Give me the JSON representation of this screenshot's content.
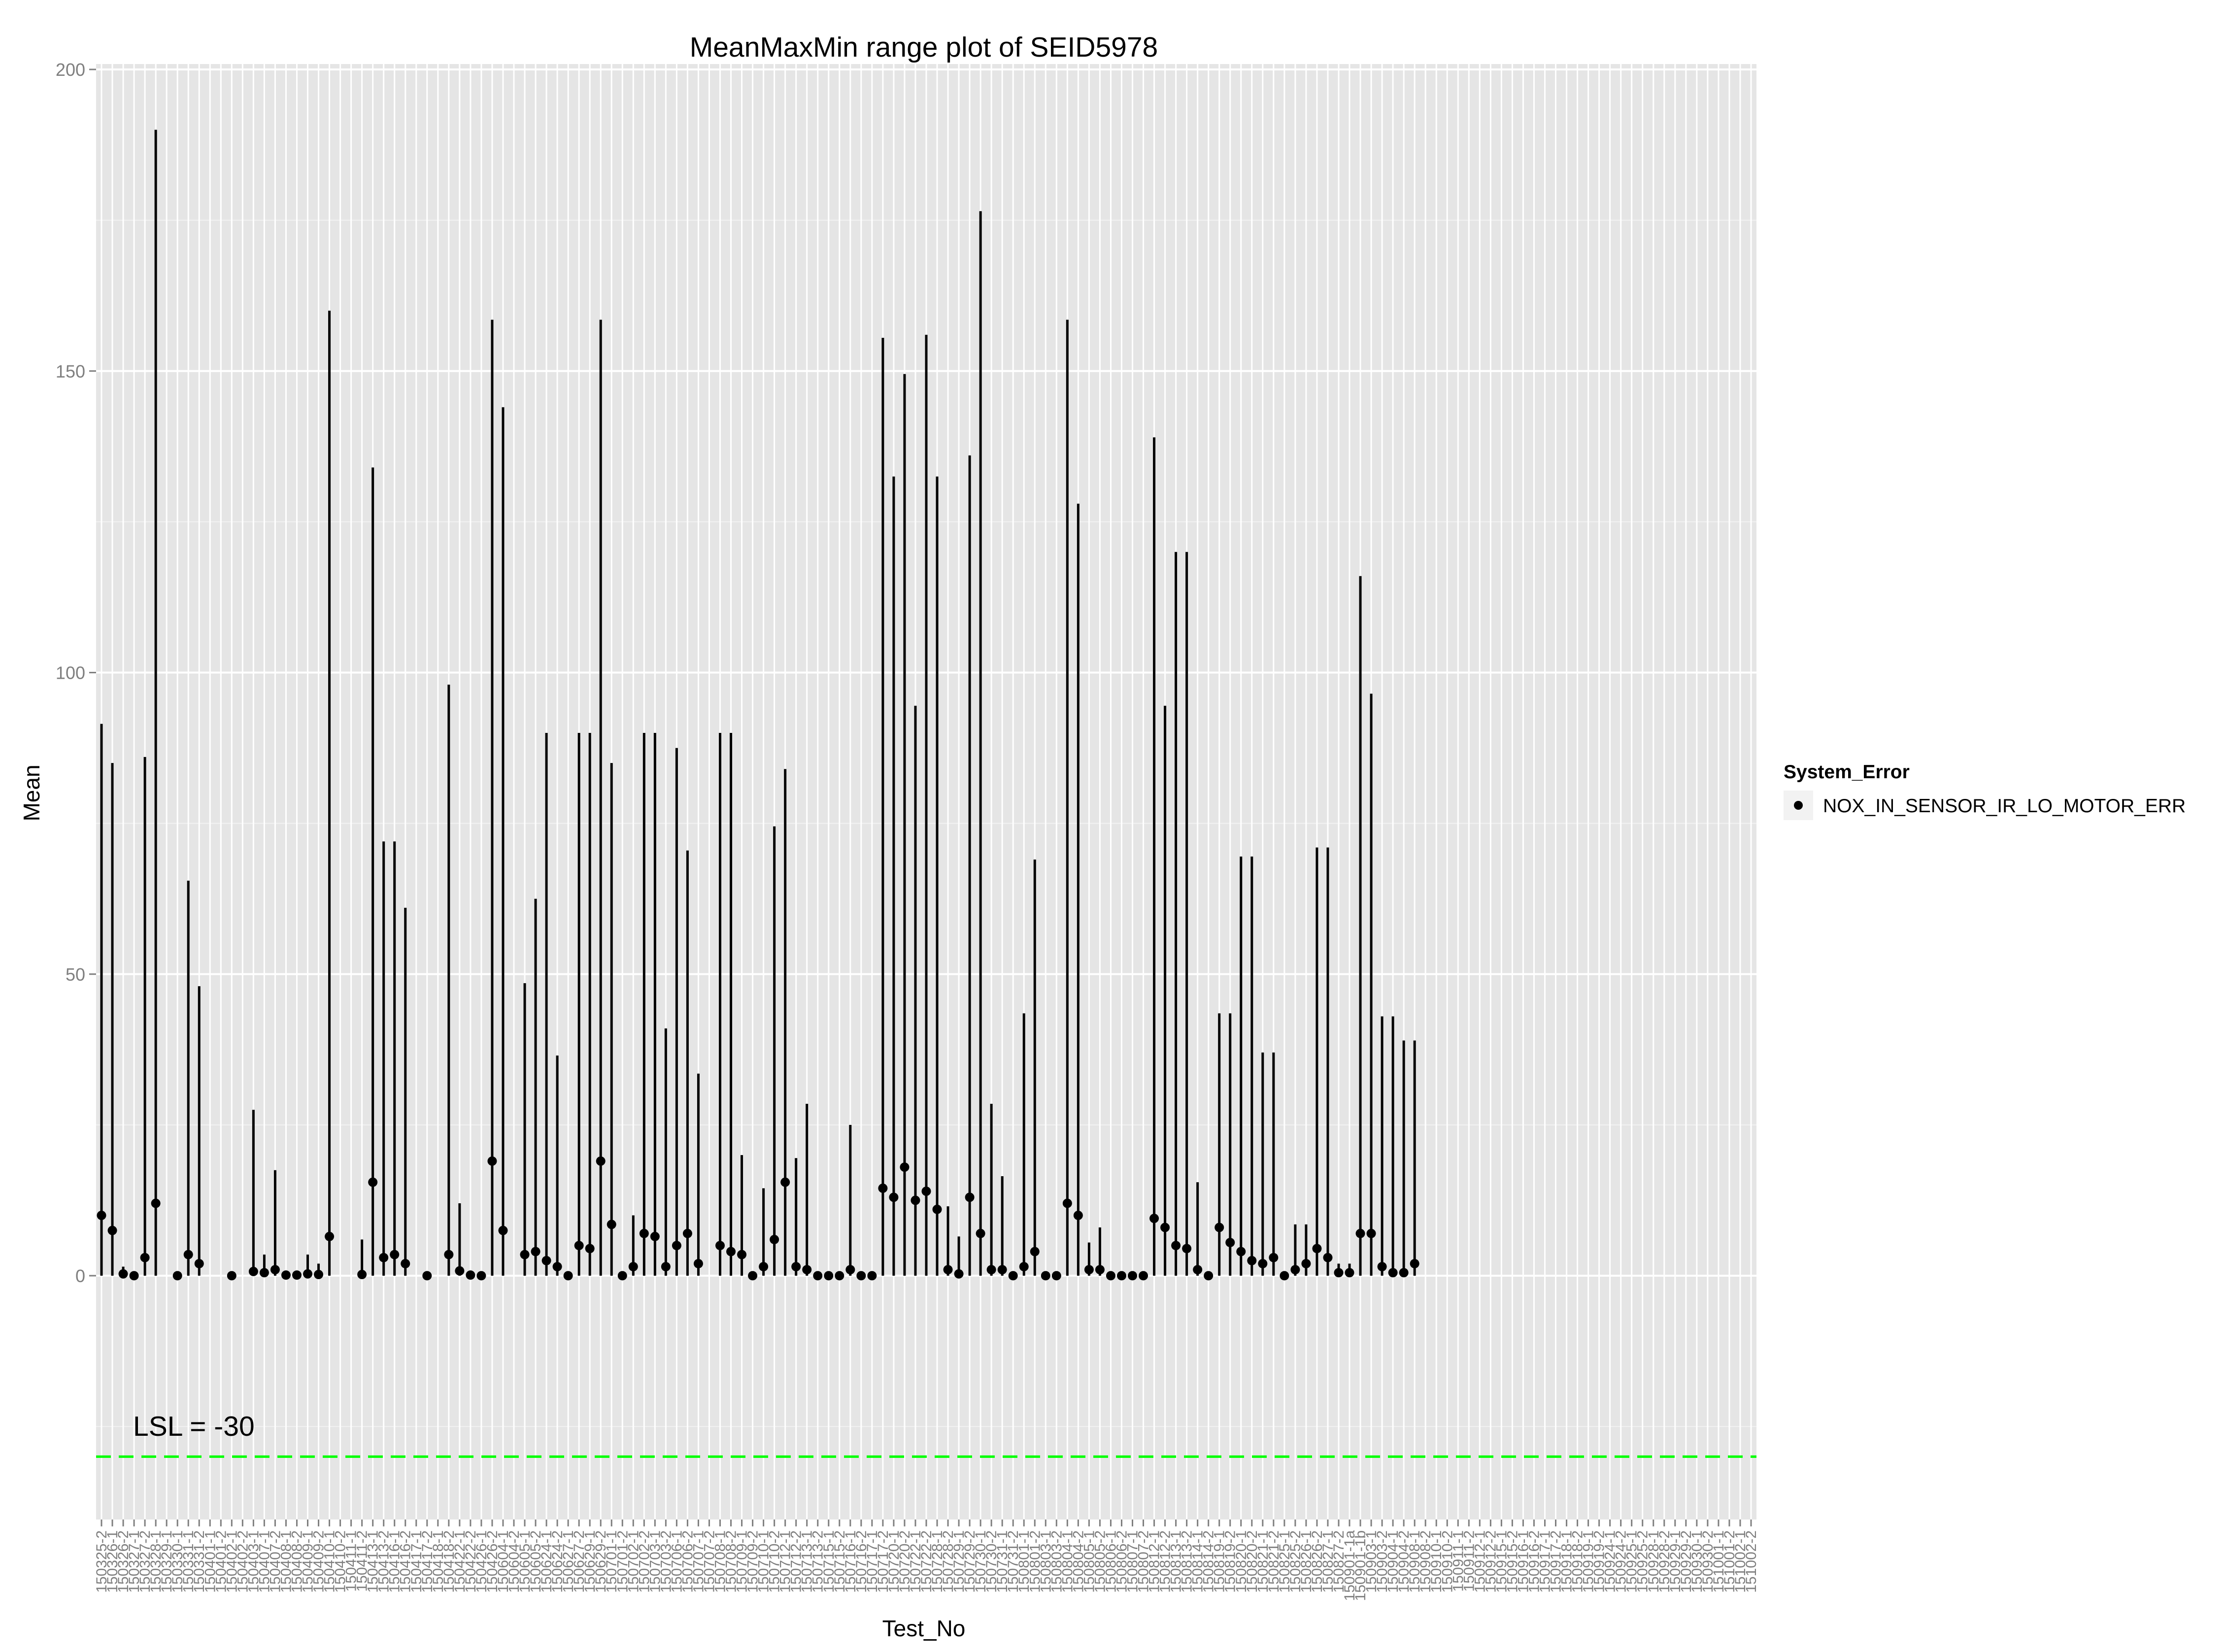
{
  "chart_data": {
    "type": "range",
    "title": "MeanMaxMin range plot of SEID5978",
    "xlabel": "Test_No",
    "ylabel": "Mean",
    "ylim": [
      -40,
      200
    ],
    "yticks": [
      0,
      50,
      100,
      150,
      200
    ],
    "grid": true,
    "legend": {
      "title": "System_Error",
      "placement": "right",
      "entries": [
        "NOX_IN_SENSOR_IR_LO_MOTOR_ERR"
      ]
    },
    "reference_line": {
      "value": -30,
      "label": "LSL = -30",
      "color": "#00ff00",
      "style": "dashed"
    },
    "categories": [
      "150325-2",
      "150326-1",
      "150326-2",
      "150327-1",
      "150327-2",
      "150328-1",
      "150329-1",
      "150330-1",
      "150331-1",
      "150331-2",
      "150401-1",
      "150401-2",
      "150402-1",
      "150402-2",
      "150403-1",
      "150407-1",
      "150407-2",
      "150408-1",
      "150408-2",
      "150409-1",
      "150409-2",
      "150410-1",
      "150410-2",
      "150411-1",
      "150411-2",
      "150413-1",
      "150413-2",
      "150416-1",
      "150416-2",
      "150417-1",
      "150417-2",
      "150418-1",
      "150418-2",
      "150422-1",
      "150422-2",
      "150426-1",
      "150426-2",
      "150604-1",
      "150604-2",
      "150605-1",
      "150605-2",
      "150624-1",
      "150624-2",
      "150627-1",
      "150627-2",
      "150629-1",
      "150629-2",
      "150701-1",
      "150701-2",
      "150702-1",
      "150702-2",
      "150703-1",
      "150703-2",
      "150706-1",
      "150706-2",
      "150707-1",
      "150707-2",
      "150708-1",
      "150708-2",
      "150709-1",
      "150709-2",
      "150710-1",
      "150710-2",
      "150712-1",
      "150712-2",
      "150713-1",
      "150713-2",
      "150715-1",
      "150715-2",
      "150716-1",
      "150716-2",
      "150717-1",
      "150717-2",
      "150720-1",
      "150720-2",
      "150722-1",
      "150722-2",
      "150728-1",
      "150728-2",
      "150729-1",
      "150729-2",
      "150730-1",
      "150730-2",
      "150731-1",
      "150731-2",
      "150801-1",
      "150801-2",
      "150803-1",
      "150803-2",
      "150804-1",
      "150804-2",
      "150805-1",
      "150805-2",
      "150806-1",
      "150806-2",
      "150807-1",
      "150807-2",
      "150812-1",
      "150812-2",
      "150813-1",
      "150813-2",
      "150814-1",
      "150814-2",
      "150819-1",
      "150819-2",
      "150820-1",
      "150820-2",
      "150821-1",
      "150821-2",
      "150825-1",
      "150825-2",
      "150826-1",
      "150826-2",
      "150827-1",
      "150827-2",
      "150901-1a",
      "150901-1b",
      "150903-1",
      "150903-2",
      "150904-1",
      "150904-2",
      "150908-1",
      "150908-2",
      "150910-1",
      "150910-2",
      "150911-1",
      "150911-2",
      "150912-1",
      "150912-2",
      "150915-1",
      "150915-2",
      "150916-1",
      "150916-2",
      "150917-1",
      "150917-2",
      "150918-1",
      "150918-2",
      "150919-1",
      "150919-2",
      "150924-1",
      "150924-2",
      "150925-1",
      "150925-2",
      "150928-1",
      "150928-2",
      "150929-1",
      "150929-2",
      "150930-1",
      "150930-2",
      "151001-1",
      "151001-2",
      "151002-1",
      "151002-2"
    ],
    "series": [
      {
        "name": "NOX_IN_SENSOR_IR_LO_MOTOR_ERR",
        "points": [
          {
            "i": 0,
            "mean": 10,
            "min": 0,
            "max": 91.5
          },
          {
            "i": 1,
            "mean": 7.5,
            "min": 0,
            "max": 85
          },
          {
            "i": 2,
            "mean": 0.3,
            "min": 0,
            "max": 1.5
          },
          {
            "i": 3,
            "mean": 0,
            "min": 0,
            "max": 0
          },
          {
            "i": 4,
            "mean": 3,
            "min": 0,
            "max": 86
          },
          {
            "i": 5,
            "mean": 12,
            "min": 0,
            "max": 190
          },
          {
            "i": 7,
            "mean": 0,
            "min": 0,
            "max": 0
          },
          {
            "i": 8,
            "mean": 3.5,
            "min": 0,
            "max": 65.5
          },
          {
            "i": 9,
            "mean": 2,
            "min": 0,
            "max": 48
          },
          {
            "i": 12,
            "mean": 0,
            "min": 0,
            "max": 0
          },
          {
            "i": 14,
            "mean": 0.7,
            "min": 0,
            "max": 27.5
          },
          {
            "i": 15,
            "mean": 0.5,
            "min": 0,
            "max": 3.5
          },
          {
            "i": 16,
            "mean": 1,
            "min": 0,
            "max": 17.5
          },
          {
            "i": 17,
            "mean": 0.1,
            "min": 0,
            "max": 0.5
          },
          {
            "i": 18,
            "mean": 0.1,
            "min": 0,
            "max": 0.5
          },
          {
            "i": 19,
            "mean": 0.3,
            "min": 0,
            "max": 3.5
          },
          {
            "i": 20,
            "mean": 0.2,
            "min": 0,
            "max": 2
          },
          {
            "i": 21,
            "mean": 6.5,
            "min": 0,
            "max": 160
          },
          {
            "i": 24,
            "mean": 0.2,
            "min": 0,
            "max": 6
          },
          {
            "i": 25,
            "mean": 15.5,
            "min": 0,
            "max": 134
          },
          {
            "i": 26,
            "mean": 3,
            "min": 0,
            "max": 72
          },
          {
            "i": 27,
            "mean": 3.5,
            "min": 0,
            "max": 72
          },
          {
            "i": 28,
            "mean": 2,
            "min": 0,
            "max": 61
          },
          {
            "i": 30,
            "mean": 0,
            "min": 0,
            "max": 0
          },
          {
            "i": 32,
            "mean": 3.5,
            "min": 0,
            "max": 98
          },
          {
            "i": 33,
            "mean": 0.8,
            "min": 0,
            "max": 12
          },
          {
            "i": 34,
            "mean": 0.1,
            "min": 0,
            "max": 0.5
          },
          {
            "i": 35,
            "mean": 0,
            "min": 0,
            "max": 0
          },
          {
            "i": 36,
            "mean": 19,
            "min": 0,
            "max": 158.5
          },
          {
            "i": 37,
            "mean": 7.5,
            "min": 0,
            "max": 144
          },
          {
            "i": 39,
            "mean": 3.5,
            "min": 0,
            "max": 48.5
          },
          {
            "i": 40,
            "mean": 4,
            "min": 0,
            "max": 62.5
          },
          {
            "i": 41,
            "mean": 2.5,
            "min": 0,
            "max": 90
          },
          {
            "i": 42,
            "mean": 1.5,
            "min": 0,
            "max": 36.5
          },
          {
            "i": 43,
            "mean": 0,
            "min": 0,
            "max": 0
          },
          {
            "i": 44,
            "mean": 5,
            "min": 0,
            "max": 90
          },
          {
            "i": 45,
            "mean": 4.5,
            "min": 0,
            "max": 90
          },
          {
            "i": 46,
            "mean": 19,
            "min": 0,
            "max": 158.5
          },
          {
            "i": 47,
            "mean": 8.5,
            "min": 0,
            "max": 85
          },
          {
            "i": 48,
            "mean": 0,
            "min": 0,
            "max": 0
          },
          {
            "i": 49,
            "mean": 1.5,
            "min": 0,
            "max": 10
          },
          {
            "i": 50,
            "mean": 7,
            "min": 0,
            "max": 90
          },
          {
            "i": 51,
            "mean": 6.5,
            "min": 0,
            "max": 90
          },
          {
            "i": 52,
            "mean": 1.5,
            "min": 0,
            "max": 41
          },
          {
            "i": 53,
            "mean": 5,
            "min": 0,
            "max": 87.5
          },
          {
            "i": 54,
            "mean": 7,
            "min": 0,
            "max": 70.5
          },
          {
            "i": 55,
            "mean": 2,
            "min": 0,
            "max": 33.5
          },
          {
            "i": 57,
            "mean": 5,
            "min": 0,
            "max": 90
          },
          {
            "i": 58,
            "mean": 4,
            "min": 0,
            "max": 90
          },
          {
            "i": 59,
            "mean": 3.5,
            "min": 0,
            "max": 20
          },
          {
            "i": 60,
            "mean": 0,
            "min": 0,
            "max": 0
          },
          {
            "i": 61,
            "mean": 1.5,
            "min": 0,
            "max": 14.5
          },
          {
            "i": 62,
            "mean": 6,
            "min": 0,
            "max": 74.5
          },
          {
            "i": 63,
            "mean": 15.5,
            "min": 0,
            "max": 84
          },
          {
            "i": 64,
            "mean": 1.5,
            "min": 0,
            "max": 19.5
          },
          {
            "i": 65,
            "mean": 1,
            "min": 0,
            "max": 28.5
          },
          {
            "i": 66,
            "mean": 0,
            "min": 0,
            "max": 0
          },
          {
            "i": 67,
            "mean": 0,
            "min": 0,
            "max": 0
          },
          {
            "i": 68,
            "mean": 0,
            "min": 0,
            "max": 0
          },
          {
            "i": 69,
            "mean": 1,
            "min": 0,
            "max": 25
          },
          {
            "i": 70,
            "mean": 0,
            "min": 0,
            "max": 0
          },
          {
            "i": 71,
            "mean": 0,
            "min": 0,
            "max": 0
          },
          {
            "i": 72,
            "mean": 14.5,
            "min": 0,
            "max": 155.5
          },
          {
            "i": 73,
            "mean": 13,
            "min": 0,
            "max": 132.5
          },
          {
            "i": 74,
            "mean": 18,
            "min": 0,
            "max": 149.5
          },
          {
            "i": 75,
            "mean": 12.5,
            "min": 0,
            "max": 94.5
          },
          {
            "i": 76,
            "mean": 14,
            "min": 0,
            "max": 156
          },
          {
            "i": 77,
            "mean": 11,
            "min": 0,
            "max": 132.5
          },
          {
            "i": 78,
            "mean": 1,
            "min": 0,
            "max": 11.5
          },
          {
            "i": 79,
            "mean": 0.3,
            "min": 0,
            "max": 6.5
          },
          {
            "i": 80,
            "mean": 13,
            "min": 0,
            "max": 136
          },
          {
            "i": 81,
            "mean": 7,
            "min": 0,
            "max": 176.5
          },
          {
            "i": 82,
            "mean": 1,
            "min": 0,
            "max": 28.5
          },
          {
            "i": 83,
            "mean": 1,
            "min": 0,
            "max": 16.5
          },
          {
            "i": 84,
            "mean": 0,
            "min": 0,
            "max": 0
          },
          {
            "i": 85,
            "mean": 1.5,
            "min": 0,
            "max": 43.5
          },
          {
            "i": 86,
            "mean": 4,
            "min": 0,
            "max": 69
          },
          {
            "i": 87,
            "mean": 0,
            "min": 0,
            "max": 0
          },
          {
            "i": 88,
            "mean": 0,
            "min": 0,
            "max": 0
          },
          {
            "i": 89,
            "mean": 12,
            "min": 0,
            "max": 158.5
          },
          {
            "i": 90,
            "mean": 10,
            "min": 0,
            "max": 128
          },
          {
            "i": 91,
            "mean": 1,
            "min": 0,
            "max": 5.5
          },
          {
            "i": 92,
            "mean": 1,
            "min": 0,
            "max": 8
          },
          {
            "i": 93,
            "mean": 0,
            "min": 0,
            "max": 0
          },
          {
            "i": 94,
            "mean": 0,
            "min": 0,
            "max": 0
          },
          {
            "i": 95,
            "mean": 0,
            "min": 0,
            "max": 0
          },
          {
            "i": 96,
            "mean": 0,
            "min": 0,
            "max": 0
          },
          {
            "i": 97,
            "mean": 9.5,
            "min": 0,
            "max": 139
          },
          {
            "i": 98,
            "mean": 8,
            "min": 0,
            "max": 94.5
          },
          {
            "i": 99,
            "mean": 5,
            "min": 0,
            "max": 120
          },
          {
            "i": 100,
            "mean": 4.5,
            "min": 0,
            "max": 120
          },
          {
            "i": 101,
            "mean": 1,
            "min": 0,
            "max": 15.5
          },
          {
            "i": 102,
            "mean": 0,
            "min": 0,
            "max": 0
          },
          {
            "i": 103,
            "mean": 8,
            "min": 0,
            "max": 43.5
          },
          {
            "i": 104,
            "mean": 5.5,
            "min": 0,
            "max": 43.5
          },
          {
            "i": 105,
            "mean": 4,
            "min": 0,
            "max": 69.5
          },
          {
            "i": 106,
            "mean": 2.5,
            "min": 0,
            "max": 69.5
          },
          {
            "i": 107,
            "mean": 2,
            "min": 0,
            "max": 37
          },
          {
            "i": 108,
            "mean": 3,
            "min": 0,
            "max": 37
          },
          {
            "i": 109,
            "mean": 0,
            "min": 0,
            "max": 0
          },
          {
            "i": 110,
            "mean": 1,
            "min": 0,
            "max": 8.5
          },
          {
            "i": 111,
            "mean": 2,
            "min": 0,
            "max": 8.5
          },
          {
            "i": 112,
            "mean": 4.5,
            "min": 0,
            "max": 71
          },
          {
            "i": 113,
            "mean": 3,
            "min": 0,
            "max": 71
          },
          {
            "i": 114,
            "mean": 0.5,
            "min": 0,
            "max": 2
          },
          {
            "i": 115,
            "mean": 0.5,
            "min": 0,
            "max": 2
          },
          {
            "i": 116,
            "mean": 7,
            "min": 0,
            "max": 116
          },
          {
            "i": 117,
            "mean": 7,
            "min": 0,
            "max": 96.5
          },
          {
            "i": 118,
            "mean": 1.5,
            "min": 0,
            "max": 43
          },
          {
            "i": 119,
            "mean": 0.5,
            "min": 0,
            "max": 43
          },
          {
            "i": 120,
            "mean": 0.5,
            "min": 0,
            "max": 39
          },
          {
            "i": 121,
            "mean": 2,
            "min": 0,
            "max": 39
          }
        ]
      }
    ]
  }
}
